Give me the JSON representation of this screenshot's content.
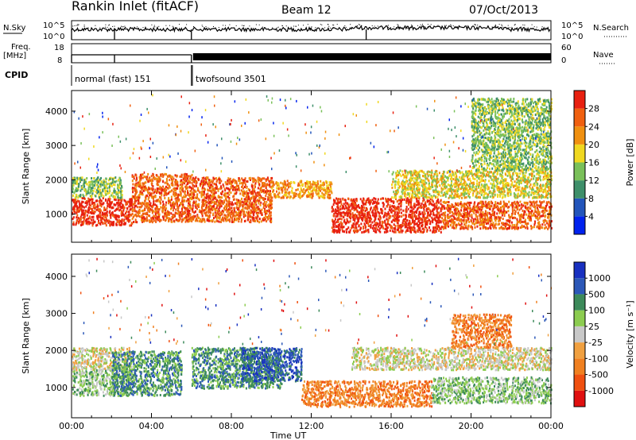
{
  "header": {
    "station": "Rankin Inlet (fitACF)",
    "beam": "Beam 12",
    "date": "07/Oct/2013"
  },
  "top_panels": {
    "nsky_label": "N.Sky",
    "nsky_ticks": [
      "10^5",
      "10^0"
    ],
    "nsearch_label": "N.Search",
    "nsearch_ticks": [
      "10^5",
      "10^0"
    ],
    "freq_label": "Freq.",
    "freq_unit": "[MHz]",
    "freq_ticks": [
      "18",
      "8"
    ],
    "nave_label": "Nave",
    "nave_ticks": [
      "60",
      "0"
    ],
    "cpid_label": "CPID",
    "cpid_segments": [
      {
        "name": "normal (fast) 151",
        "start_h": 0,
        "end_h": 6.0
      },
      {
        "name": "twofsound 3501",
        "start_h": 6.05,
        "end_h": 24
      }
    ]
  },
  "colors": {
    "power": [
      "#0022ee",
      "#2255bb",
      "#3e8f6a",
      "#7ac05a",
      "#f0d820",
      "#f09010",
      "#f06010",
      "#e82010"
    ],
    "velocity": [
      "#e01010",
      "#f05010",
      "#f08020",
      "#f0a040",
      "#c8c8c8",
      "#8ccc50",
      "#3c8a5a",
      "#2c58b8",
      "#1830c0"
    ]
  },
  "chart_data": [
    {
      "type": "heatmap",
      "name": "power",
      "ylabel": "Slant Range [km]",
      "xlabel": "Time UT",
      "x_ticks": [
        "00:00",
        "04:00",
        "08:00",
        "12:00",
        "16:00",
        "20:00",
        "00:00"
      ],
      "y_ticks": [
        1000,
        2000,
        3000,
        4000
      ],
      "xlim": [
        0,
        24
      ],
      "ylim": [
        180,
        4600
      ],
      "colorbar_label": "Power [dB]",
      "colorbar_ticks": [
        "28",
        "24",
        "20",
        "16",
        "12",
        "8",
        "4"
      ],
      "scatter_regions": [
        {
          "t0": 0.0,
          "t1": 3.0,
          "r0": 700,
          "r1": 1500,
          "level": 7
        },
        {
          "t0": 0.0,
          "t1": 2.5,
          "r0": 1500,
          "r1": 2100,
          "level": 3
        },
        {
          "t0": 3.0,
          "t1": 6.0,
          "r0": 800,
          "r1": 2200,
          "level": 6
        },
        {
          "t0": 6.0,
          "t1": 10.0,
          "r0": 800,
          "r1": 2100,
          "level": 6
        },
        {
          "t0": 10.0,
          "t1": 13.0,
          "r0": 1500,
          "r1": 2000,
          "level": 5
        },
        {
          "t0": 13.0,
          "t1": 18.5,
          "r0": 500,
          "r1": 1500,
          "level": 7
        },
        {
          "t0": 16.0,
          "t1": 24.0,
          "r0": 1500,
          "r1": 2300,
          "level": 4
        },
        {
          "t0": 18.5,
          "t1": 24.0,
          "r0": 600,
          "r1": 1400,
          "level": 6
        },
        {
          "t0": 20.0,
          "t1": 24.0,
          "r0": 2300,
          "r1": 4400,
          "level": 3
        }
      ]
    },
    {
      "type": "heatmap",
      "name": "velocity",
      "ylabel": "Slant Range [km]",
      "xlabel": "Time UT",
      "x_ticks": [
        "00:00",
        "04:00",
        "08:00",
        "12:00",
        "16:00",
        "20:00",
        "00:00"
      ],
      "y_ticks": [
        1000,
        2000,
        3000,
        4000
      ],
      "xlim": [
        0,
        24
      ],
      "ylim": [
        180,
        4600
      ],
      "colorbar_label": "Velocity [m s⁻¹]",
      "colorbar_ticks": [
        "1000",
        "500",
        "100",
        "25",
        "-25",
        "-100",
        "-500",
        "-1000"
      ],
      "scatter_regions": [
        {
          "t0": 0.0,
          "t1": 3.0,
          "r0": 800,
          "r1": 1500,
          "level": 5
        },
        {
          "t0": 0.0,
          "t1": 3.0,
          "r0": 1500,
          "r1": 2100,
          "level": 4
        },
        {
          "t0": 2.0,
          "t1": 5.5,
          "r0": 800,
          "r1": 2000,
          "level": 6
        },
        {
          "t0": 6.0,
          "t1": 10.5,
          "r0": 1000,
          "r1": 2100,
          "level": 6
        },
        {
          "t0": 8.5,
          "t1": 11.5,
          "r0": 1200,
          "r1": 2100,
          "level": 7
        },
        {
          "t0": 11.5,
          "t1": 18.0,
          "r0": 500,
          "r1": 1200,
          "level": 2
        },
        {
          "t0": 14.0,
          "t1": 24.0,
          "r0": 1500,
          "r1": 2100,
          "level": 4
        },
        {
          "t0": 18.0,
          "t1": 24.0,
          "r0": 600,
          "r1": 1300,
          "level": 5
        },
        {
          "t0": 19.0,
          "t1": 22.0,
          "r0": 2100,
          "r1": 3000,
          "level": 2
        }
      ]
    }
  ]
}
